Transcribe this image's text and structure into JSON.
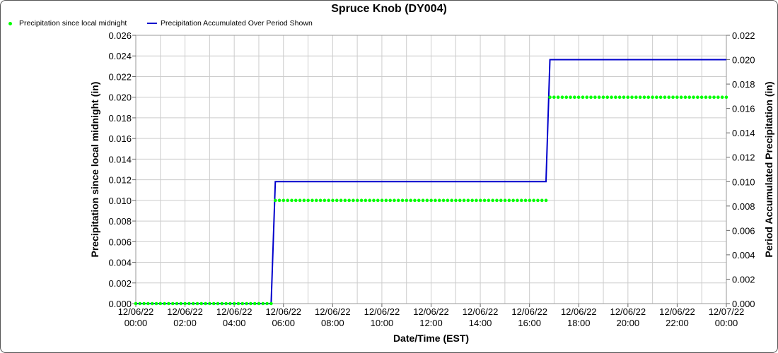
{
  "chart_data": {
    "type": "line",
    "title": "Spruce Knob (DY004)",
    "xlabel": "Date/Time (EST)",
    "ylabel": "Precipitation since local midnight (in)",
    "ylabel_right": "Period Accumulated Precipitation (in)",
    "x_range_hours": [
      0,
      24
    ],
    "x_ticks": [
      {
        "date": "12/06/22",
        "time": "00:00",
        "hour": 0
      },
      {
        "date": "12/06/22",
        "time": "02:00",
        "hour": 2
      },
      {
        "date": "12/06/22",
        "time": "04:00",
        "hour": 4
      },
      {
        "date": "12/06/22",
        "time": "06:00",
        "hour": 6
      },
      {
        "date": "12/06/22",
        "time": "08:00",
        "hour": 8
      },
      {
        "date": "12/06/22",
        "time": "10:00",
        "hour": 10
      },
      {
        "date": "12/06/22",
        "time": "12:00",
        "hour": 12
      },
      {
        "date": "12/06/22",
        "time": "14:00",
        "hour": 14
      },
      {
        "date": "12/06/22",
        "time": "16:00",
        "hour": 16
      },
      {
        "date": "12/06/22",
        "time": "18:00",
        "hour": 18
      },
      {
        "date": "12/06/22",
        "time": "20:00",
        "hour": 20
      },
      {
        "date": "12/06/22",
        "time": "22:00",
        "hour": 22
      },
      {
        "date": "12/07/22",
        "time": "00:00",
        "hour": 24
      }
    ],
    "ylim_left": [
      0,
      0.026
    ],
    "yticks_left": [
      "0.000",
      "0.002",
      "0.004",
      "0.006",
      "0.008",
      "0.010",
      "0.012",
      "0.014",
      "0.016",
      "0.018",
      "0.020",
      "0.022",
      "0.024",
      "0.026"
    ],
    "ylim_right": [
      0,
      0.022
    ],
    "yticks_right": [
      "0.000",
      "0.002",
      "0.004",
      "0.006",
      "0.008",
      "0.010",
      "0.012",
      "0.014",
      "0.016",
      "0.018",
      "0.020",
      "0.022"
    ],
    "grid": true,
    "legend_position": "top-left",
    "series": [
      {
        "name": "Precipitation since local midnight",
        "axis": "left",
        "style": "dots",
        "color": "#00ff00",
        "interval_hours": 0.1667,
        "segments": [
          {
            "start_hour": 0,
            "end_hour": 5.5,
            "value": 0.0
          },
          {
            "start_hour": 5.67,
            "end_hour": 16.67,
            "value": 0.01
          },
          {
            "start_hour": 16.83,
            "end_hour": 24,
            "value": 0.02
          }
        ]
      },
      {
        "name": "Precipitation Accumulated Over Period Shown",
        "axis": "right",
        "style": "line",
        "color": "#0000cc",
        "points": [
          {
            "hour": 0,
            "value": 0.0
          },
          {
            "hour": 5.5,
            "value": 0.0
          },
          {
            "hour": 5.67,
            "value": 0.01
          },
          {
            "hour": 16.67,
            "value": 0.01
          },
          {
            "hour": 16.83,
            "value": 0.02
          },
          {
            "hour": 24,
            "value": 0.02
          }
        ]
      }
    ]
  }
}
